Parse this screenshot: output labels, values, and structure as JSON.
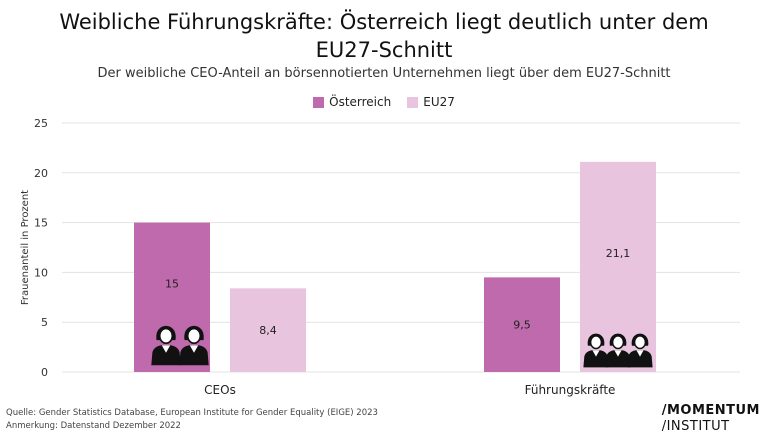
{
  "header": {
    "title_line1": "Weibliche Führungskräfte: Österreich liegt deutlich unter dem",
    "title_line2": "EU27-Schnitt",
    "subtitle": "Der weibliche CEO-Anteil an börsennotierten Unternehmen liegt über dem EU27-Schnitt"
  },
  "colors": {
    "oesterreich": "#c06aae",
    "eu27": "#e8c4df",
    "grid": "#e3e3e3",
    "icon": "#111111"
  },
  "chart_data": {
    "type": "bar",
    "categories": [
      "CEOs",
      "Führungskräfte"
    ],
    "series": [
      {
        "name": "Österreich",
        "values": [
          15,
          9.5
        ],
        "labels": [
          "15",
          "9,5"
        ]
      },
      {
        "name": "EU27",
        "values": [
          8.4,
          21.1
        ],
        "labels": [
          "8,4",
          "21,1"
        ]
      }
    ],
    "ylabel": "Frauenanteil in Prozent",
    "ylim": [
      0,
      25
    ],
    "yticks": [
      "0",
      "5",
      "10",
      "15",
      "20",
      "25"
    ],
    "grid": true,
    "legend": "top-center"
  },
  "icons": {
    "ceos": "two-women-icon",
    "fuehrungskraefte": "three-women-icon"
  },
  "footer": {
    "source": "Quelle: Gender Statistics Database, European Institute for Gender Equality (EIGE) 2023",
    "note": "Anmerkung: Datenstand Dezember 2022",
    "logo_line1": "/MOMENTUM",
    "logo_line2": "/INSTITUT"
  }
}
